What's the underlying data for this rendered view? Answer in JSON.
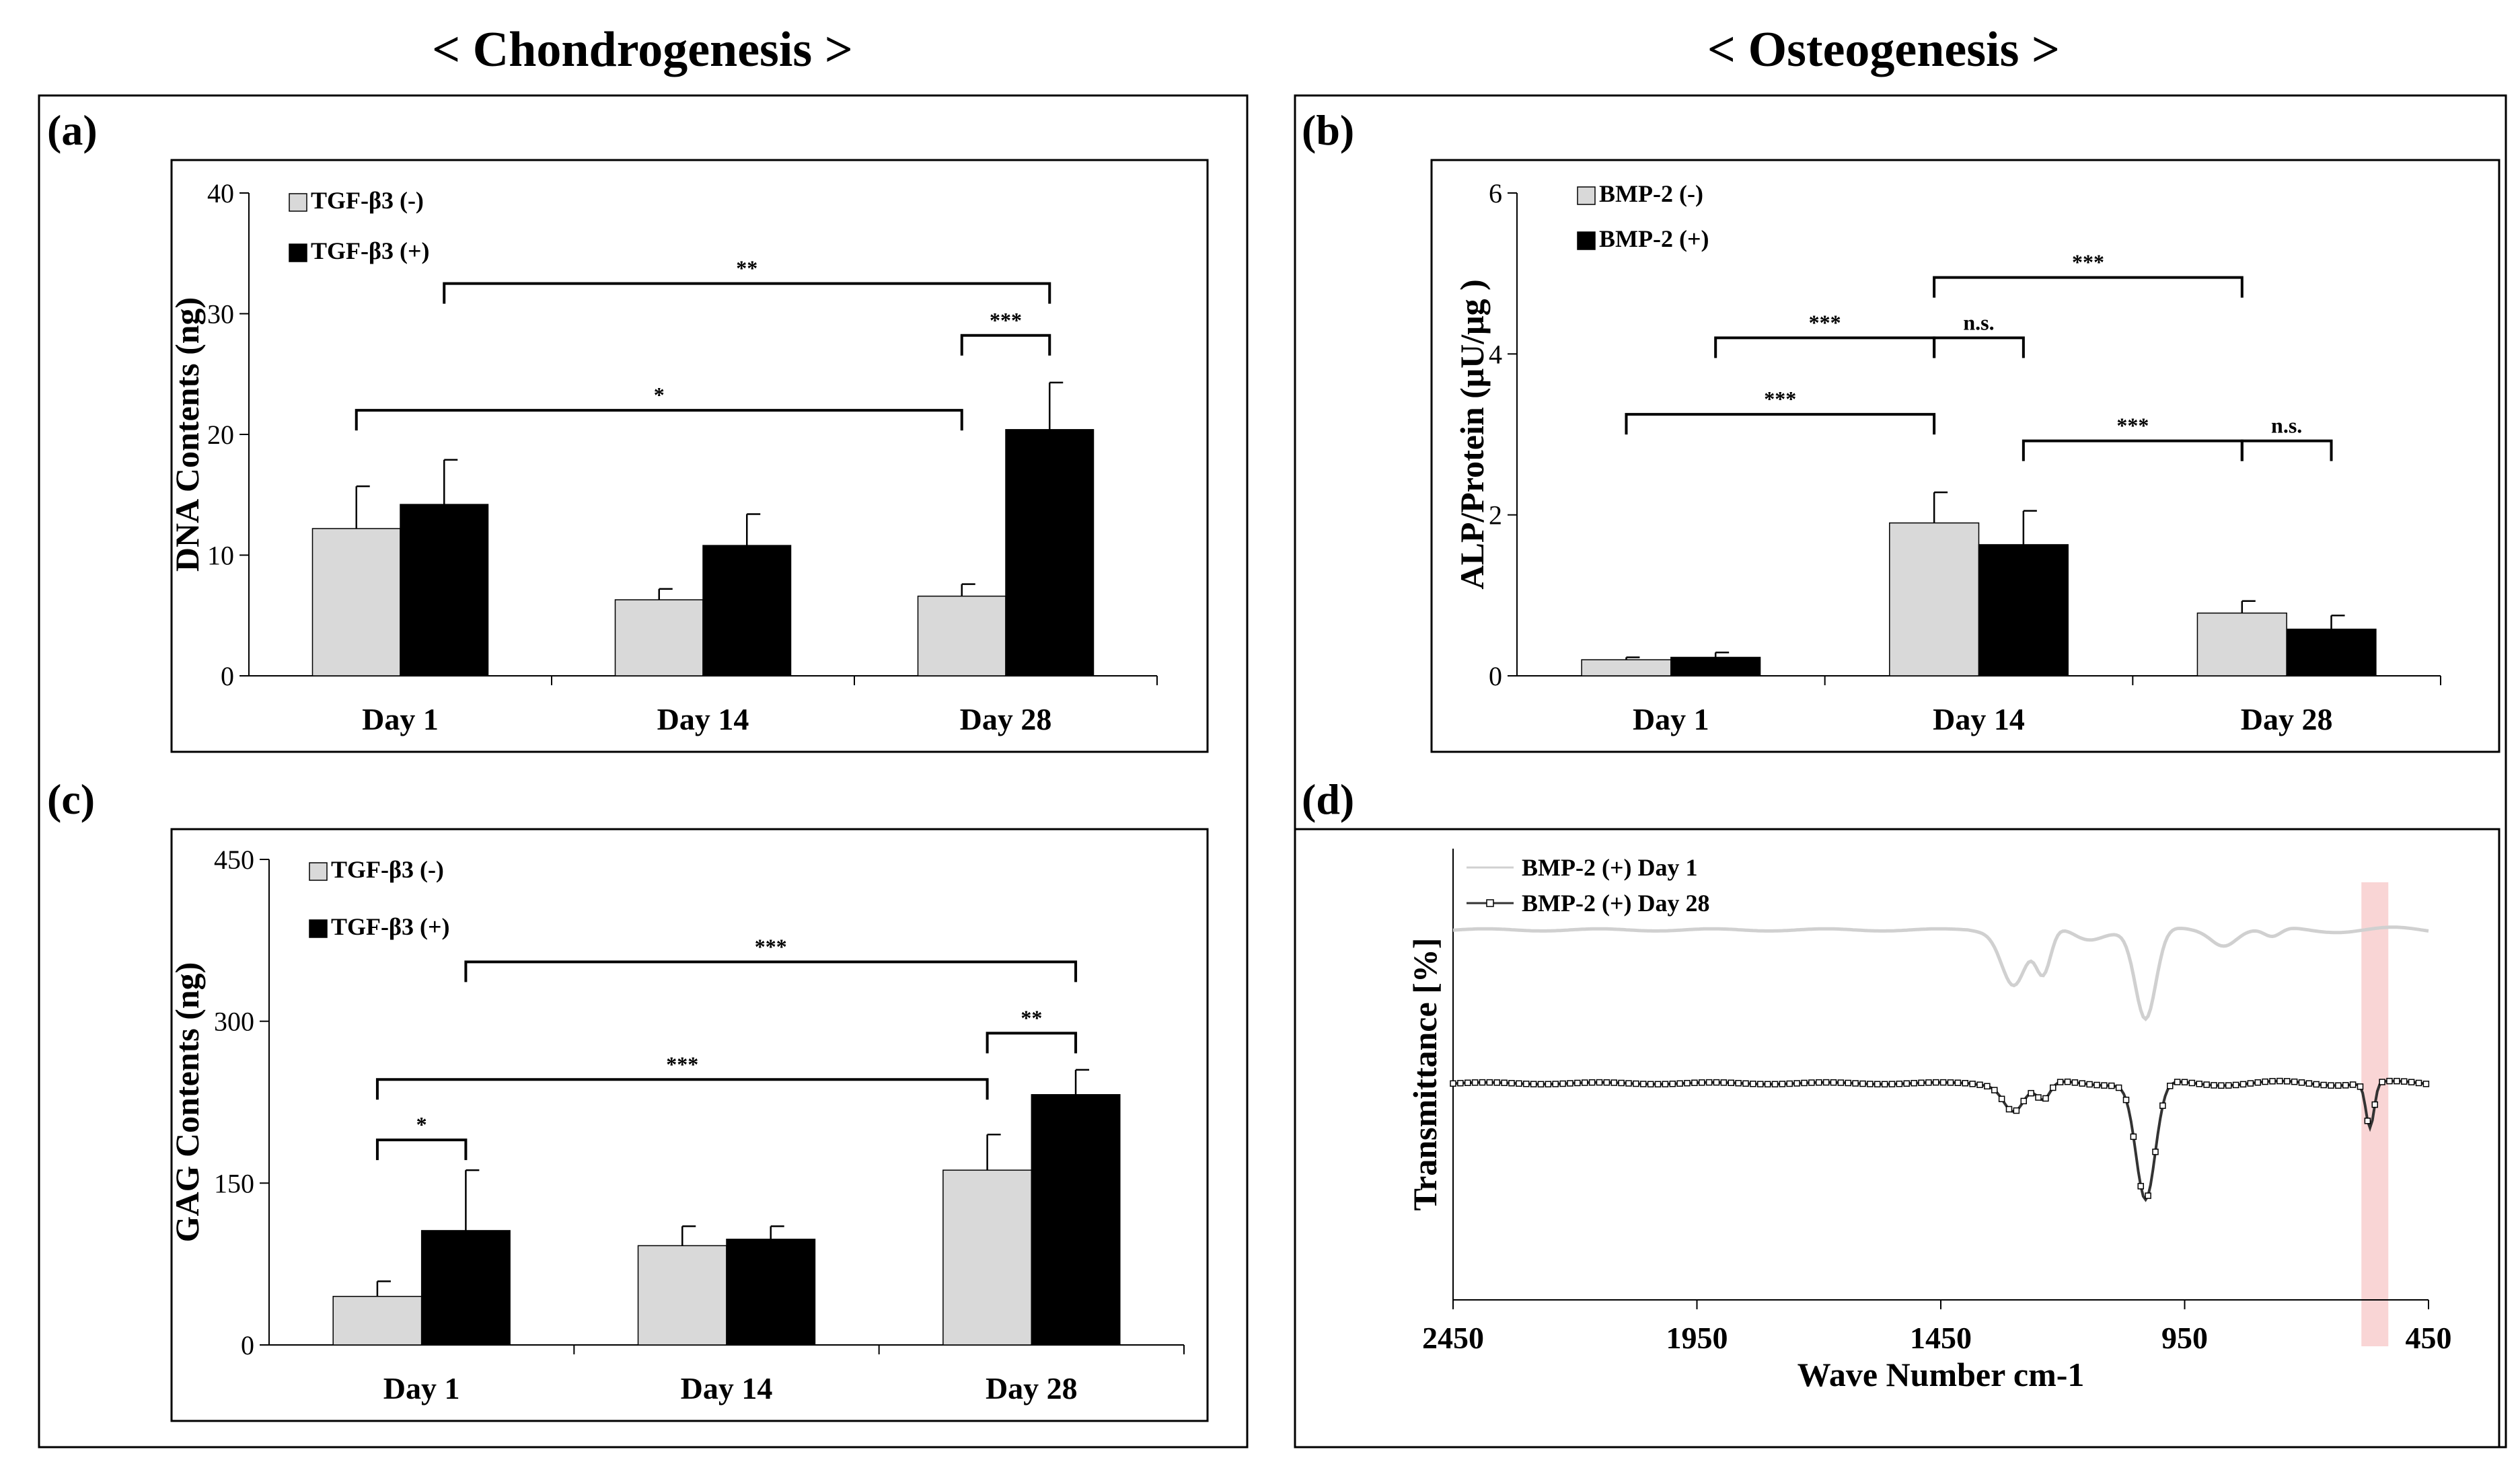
{
  "section_titles": {
    "left": "< Chondrogenesis >",
    "right": "< Osteogenesis >"
  },
  "colors": {
    "minus": "#d9d9d9",
    "plus": "#000000",
    "day1_line": "#d0d0d0",
    "day28_line": "#333333",
    "highlight": "#f4b3b3"
  },
  "chart_data": [
    {
      "id": "a",
      "panel_label": "(a)",
      "type": "bar",
      "ylabel": "DNA Contents (ng)",
      "ylim": [
        0,
        40
      ],
      "yticks": [
        "0",
        "10",
        "20",
        "30",
        "40"
      ],
      "categories": [
        "Day 1",
        "Day 14",
        "Day 28"
      ],
      "series": [
        {
          "name": "TGF-β3 (-)",
          "values": [
            12.2,
            6.3,
            6.6
          ],
          "errors": [
            3.5,
            0.9,
            1.0
          ]
        },
        {
          "name": "TGF-β3 (+)",
          "values": [
            14.2,
            10.8,
            20.4
          ],
          "errors": [
            3.7,
            2.6,
            3.9
          ]
        }
      ],
      "significance": [
        {
          "label": "**",
          "from": [
            0,
            1
          ],
          "to": [
            2,
            1
          ],
          "y": 32.5
        },
        {
          "label": "***",
          "from": [
            2,
            0
          ],
          "to": [
            2,
            1
          ],
          "y": 28.2
        },
        {
          "label": "*",
          "from": [
            0,
            0
          ],
          "to": [
            2,
            0
          ],
          "y": 22.0
        }
      ]
    },
    {
      "id": "b",
      "panel_label": "(b)",
      "type": "bar",
      "ylabel": "ALP/Protein (μU/μg )",
      "ylim": [
        0,
        6
      ],
      "yticks": [
        "0",
        "2",
        "4",
        "6"
      ],
      "categories": [
        "Day 1",
        "Day 14",
        "Day 28"
      ],
      "series": [
        {
          "name": "BMP-2 (-)",
          "values": [
            0.2,
            1.9,
            0.78
          ],
          "errors": [
            0.03,
            0.38,
            0.15
          ]
        },
        {
          "name": "BMP-2 (+)",
          "values": [
            0.23,
            1.63,
            0.58
          ],
          "errors": [
            0.06,
            0.42,
            0.17
          ]
        }
      ],
      "significance": [
        {
          "label": "***",
          "from": [
            1,
            0
          ],
          "to": [
            2,
            0
          ],
          "y": 4.95
        },
        {
          "label": "***",
          "from": [
            0,
            1
          ],
          "to": [
            1,
            0
          ],
          "y": 4.2
        },
        {
          "label": "n.s.",
          "from": [
            1,
            0
          ],
          "to": [
            1,
            1
          ],
          "y": 4.2
        },
        {
          "label": "***",
          "from": [
            0,
            0
          ],
          "to": [
            1,
            0
          ],
          "y": 3.25
        },
        {
          "label": "***",
          "from": [
            1,
            1
          ],
          "to": [
            2,
            0
          ],
          "y": 2.92
        },
        {
          "label": "n.s.",
          "from": [
            2,
            0
          ],
          "to": [
            2,
            1
          ],
          "y": 2.92
        }
      ]
    },
    {
      "id": "c",
      "panel_label": "(c)",
      "type": "bar",
      "ylabel": "GAG Contents (ng)",
      "ylim": [
        0,
        450
      ],
      "yticks": [
        "0",
        "150",
        "300",
        "450"
      ],
      "categories": [
        "Day 1",
        "Day 14",
        "Day 28"
      ],
      "series": [
        {
          "name": "TGF-β3 (-)",
          "values": [
            45,
            92,
            162
          ],
          "errors": [
            14,
            18,
            33
          ]
        },
        {
          "name": "TGF-β3 (+)",
          "values": [
            106,
            98,
            232
          ],
          "errors": [
            56,
            12,
            23
          ]
        }
      ],
      "significance": [
        {
          "label": "***",
          "from": [
            0,
            1
          ],
          "to": [
            2,
            1
          ],
          "y": 355
        },
        {
          "label": "**",
          "from": [
            2,
            0
          ],
          "to": [
            2,
            1
          ],
          "y": 289
        },
        {
          "label": "***",
          "from": [
            0,
            0
          ],
          "to": [
            2,
            0
          ],
          "y": 246
        },
        {
          "label": "*",
          "from": [
            0,
            0
          ],
          "to": [
            0,
            1
          ],
          "y": 190
        }
      ]
    },
    {
      "id": "d",
      "panel_label": "(d)",
      "type": "line",
      "xlabel": "Wave Number cm-1",
      "ylabel": "Transmittance [%]",
      "xlim": [
        2450,
        450
      ],
      "xticks": [
        "2450",
        "1950",
        "1450",
        "950",
        "450"
      ],
      "highlight_wavenumber": 560,
      "series": [
        {
          "name": "BMP-2 (+) Day 1",
          "baseline": 82,
          "dips": [
            [
              1300,
              12,
              35
            ],
            [
              1240,
              10,
              22
            ],
            [
              1150,
              2,
              40
            ],
            [
              1030,
              20,
              30
            ],
            [
              870,
              3,
              35
            ],
            [
              770,
              2,
              25
            ]
          ],
          "ripple": 0.6
        },
        {
          "name": "BMP-2 (+) Day 28",
          "baseline": 48,
          "dips": [
            [
              1300,
              6,
              30
            ],
            [
              1240,
              4,
              20
            ],
            [
              1030,
              26,
              28
            ],
            [
              570,
              10,
              12
            ]
          ],
          "ripple": 0.5
        }
      ]
    }
  ]
}
